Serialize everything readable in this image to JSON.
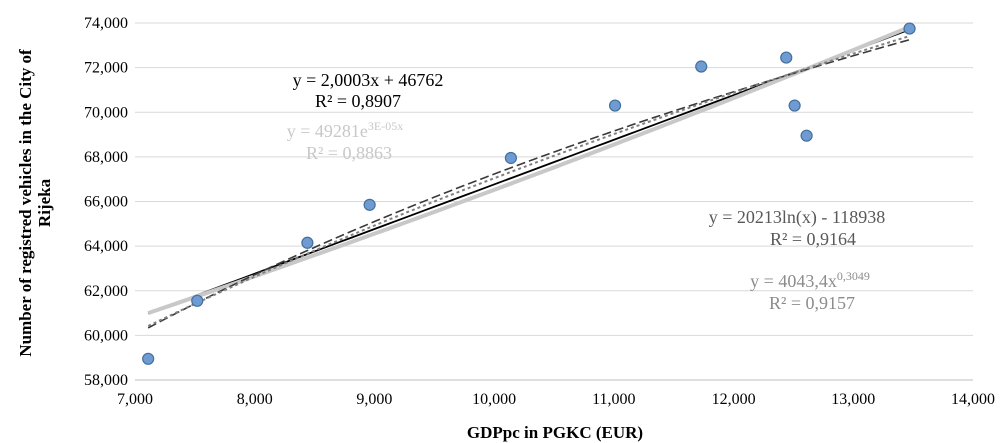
{
  "chart_data": {
    "type": "scatter",
    "xlabel": "GDPpc in PGKC (EUR)",
    "ylabel_line1": "Number of registred vehicles in the City of",
    "ylabel_line2": "Rijeka",
    "xlim": [
      7000,
      14000
    ],
    "ylim": [
      58000,
      74000
    ],
    "x_ticks": [
      7000,
      8000,
      9000,
      10000,
      11000,
      12000,
      13000,
      14000
    ],
    "y_ticks": [
      58000,
      60000,
      62000,
      64000,
      66000,
      68000,
      70000,
      72000,
      74000
    ],
    "x_tick_labels": [
      "7,000",
      "8,000",
      "9,000",
      "10,000",
      "11,000",
      "12,000",
      "13,000",
      "14,000"
    ],
    "y_tick_labels": [
      "58,000",
      "60,000",
      "62,000",
      "64,000",
      "66,000",
      "68,000",
      "70,000",
      "72,000",
      "74,000"
    ],
    "points": [
      {
        "x": 7110,
        "y": 58950
      },
      {
        "x": 7520,
        "y": 61550
      },
      {
        "x": 8440,
        "y": 64150
      },
      {
        "x": 8960,
        "y": 65850
      },
      {
        "x": 10140,
        "y": 67950
      },
      {
        "x": 11010,
        "y": 70300
      },
      {
        "x": 11730,
        "y": 72050
      },
      {
        "x": 12440,
        "y": 72450
      },
      {
        "x": 12510,
        "y": 70300
      },
      {
        "x": 12610,
        "y": 68950
      },
      {
        "x": 13470,
        "y": 73750
      }
    ],
    "marker_color": "#6f9bd2",
    "marker_edge_color": "#41719c",
    "trendlines": [
      {
        "kind": "linear",
        "a": 2.0003,
        "b": 46762,
        "color": "#000000",
        "dash": "none",
        "width": 1.8
      },
      {
        "kind": "exponential",
        "a": 49281,
        "b": 3e-05,
        "color": "#c8c8c8",
        "dash": "none",
        "width": 4
      },
      {
        "kind": "logarithmic",
        "a": 20213,
        "b": -118938,
        "color": "#3a3a3a",
        "dash": "9 4",
        "width": 1.6
      },
      {
        "kind": "power",
        "a": 4043.4,
        "b": 0.3049,
        "color": "#808080",
        "dash": "3 3",
        "width": 2
      }
    ],
    "annotations": {
      "linear_eq": "y = 2,0003x + 46762",
      "linear_r2": "R² = 0,8907",
      "exp_eq_base": "y = 49281e",
      "exp_eq_sup": "3E-05x",
      "exp_r2": "R² = 0,8863",
      "log_eq": "y = 20213ln(x) - 118938",
      "log_r2": "R² = 0,9164",
      "power_eq_base": "y = 4043,4x",
      "power_eq_sup": "0,3049",
      "power_r2": "R² = 0,9157"
    },
    "annotation_colors": {
      "linear": "#000000",
      "exponential": "#c8c8c8",
      "logarithmic": "#595959",
      "power": "#8c8c8c"
    }
  }
}
